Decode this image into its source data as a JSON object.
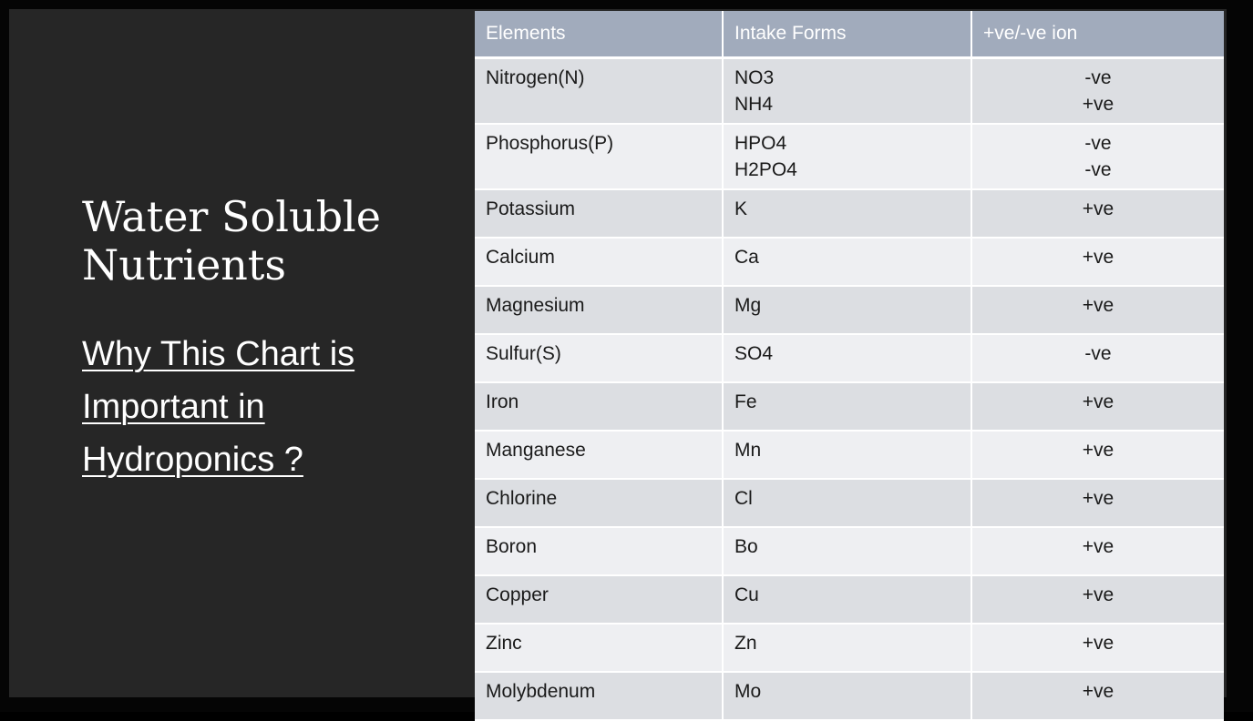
{
  "slide": {
    "title": "Water Soluble Nutrients",
    "subtitle": "Why This Chart is Important in Hydroponics ?"
  },
  "table": {
    "headers": [
      "Elements",
      "Intake Forms",
      "+ve/-ve ion"
    ],
    "rows": [
      {
        "element": "Nitrogen(N)",
        "forms": [
          "NO3",
          "NH4"
        ],
        "ions": [
          "-ve",
          "+ve"
        ]
      },
      {
        "element": "Phosphorus(P)",
        "forms": [
          "HPO4",
          "H2PO4"
        ],
        "ions": [
          "-ve",
          "-ve"
        ]
      },
      {
        "element": "Potassium",
        "forms": [
          "K"
        ],
        "ions": [
          "+ve"
        ]
      },
      {
        "element": "Calcium",
        "forms": [
          "Ca"
        ],
        "ions": [
          "+ve"
        ]
      },
      {
        "element": "Magnesium",
        "forms": [
          "Mg"
        ],
        "ions": [
          "+ve"
        ]
      },
      {
        "element": "Sulfur(S)",
        "forms": [
          "SO4"
        ],
        "ions": [
          "-ve"
        ]
      },
      {
        "element": "Iron",
        "forms": [
          "Fe"
        ],
        "ions": [
          "+ve"
        ]
      },
      {
        "element": "Manganese",
        "forms": [
          "Mn"
        ],
        "ions": [
          "+ve"
        ]
      },
      {
        "element": "Chlorine",
        "forms": [
          "Cl"
        ],
        "ions": [
          "+ve"
        ]
      },
      {
        "element": "Boron",
        "forms": [
          "Bo"
        ],
        "ions": [
          "+ve"
        ]
      },
      {
        "element": "Copper",
        "forms": [
          "Cu"
        ],
        "ions": [
          "+ve"
        ]
      },
      {
        "element": "Zinc",
        "forms": [
          "Zn"
        ],
        "ions": [
          "+ve"
        ]
      },
      {
        "element": "Molybdenum",
        "forms": [
          "Mo"
        ],
        "ions": [
          "+ve"
        ]
      }
    ]
  }
}
